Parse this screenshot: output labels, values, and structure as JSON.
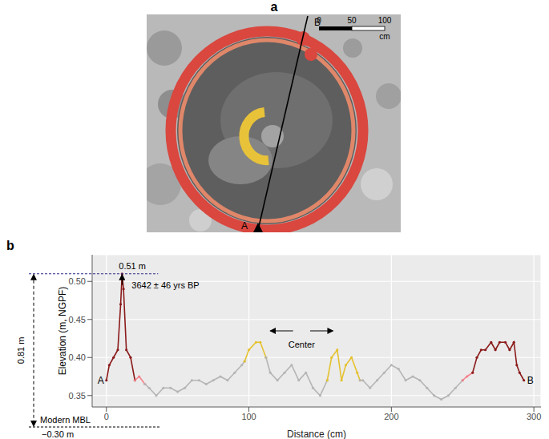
{
  "chart_data": {
    "type": "line",
    "panel_label": "b",
    "x_label": "Distance (cm)",
    "y_label": "Elevation (m, NGPF)",
    "xlim": [
      -10,
      305
    ],
    "xticks": [
      0,
      100,
      200,
      300
    ],
    "ylim": [
      0.335,
      0.535
    ],
    "yticks": [
      0.35,
      {
        "value": 0.4,
        "label": "0.40"
      },
      0.45,
      {
        "value": 0.5,
        "label": "0.50"
      }
    ],
    "grid": true,
    "marker": "circle",
    "series": [
      {
        "color": "#8b1a1a",
        "x": [
          0,
          2,
          5,
          8,
          10,
          11,
          12,
          14,
          17,
          20
        ],
        "values": [
          0.37,
          0.39,
          0.4,
          0.41,
          0.47,
          0.51,
          0.49,
          0.41,
          0.4,
          0.37
        ]
      },
      {
        "color": "#f4828c",
        "x": [
          20,
          23,
          27
        ],
        "values": [
          0.37,
          0.375,
          0.365
        ]
      },
      {
        "color": "#b5b5b5",
        "x": [
          27,
          30,
          35,
          40,
          45,
          50,
          55,
          60,
          65,
          70,
          75,
          80,
          85,
          90,
          95,
          97
        ],
        "values": [
          0.365,
          0.36,
          0.35,
          0.36,
          0.36,
          0.355,
          0.36,
          0.37,
          0.37,
          0.365,
          0.37,
          0.375,
          0.37,
          0.38,
          0.39,
          0.395
        ]
      },
      {
        "color": "#e5c12f",
        "x": [
          97,
          100,
          105,
          108,
          112
        ],
        "values": [
          0.395,
          0.41,
          0.42,
          0.42,
          0.4
        ]
      },
      {
        "color": "#b5b5b5",
        "x": [
          112,
          115,
          120,
          125,
          130,
          135,
          140,
          145,
          150,
          155
        ],
        "values": [
          0.4,
          0.38,
          0.37,
          0.38,
          0.39,
          0.37,
          0.38,
          0.36,
          0.35,
          0.37
        ]
      },
      {
        "color": "#e5c12f",
        "x": [
          155,
          158,
          162,
          165,
          168,
          172,
          176,
          178
        ],
        "values": [
          0.37,
          0.4,
          0.41,
          0.37,
          0.39,
          0.4,
          0.38,
          0.37
        ]
      },
      {
        "color": "#b5b5b5",
        "x": [
          178,
          180,
          185,
          190,
          195,
          200,
          205,
          210,
          215,
          220,
          225,
          230,
          235,
          240,
          245,
          250
        ],
        "values": [
          0.37,
          0.37,
          0.36,
          0.37,
          0.38,
          0.39,
          0.385,
          0.37,
          0.375,
          0.37,
          0.36,
          0.35,
          0.345,
          0.35,
          0.36,
          0.37
        ]
      },
      {
        "color": "#f4828c",
        "x": [
          250,
          253,
          257
        ],
        "values": [
          0.37,
          0.375,
          0.38
        ]
      },
      {
        "color": "#8b1a1a",
        "x": [
          257,
          260,
          263,
          266,
          270,
          273,
          276,
          280,
          283,
          286,
          288,
          290,
          293
        ],
        "values": [
          0.38,
          0.4,
          0.41,
          0.41,
          0.42,
          0.41,
          0.42,
          0.42,
          0.41,
          0.42,
          0.39,
          0.38,
          0.37
        ]
      }
    ],
    "peak": {
      "value": 0.51,
      "label": "0.51 m",
      "age": "3642 ± 46 yrs BP"
    },
    "height_above_mbl": {
      "value": 0.81,
      "label": "0.81 m"
    },
    "mbl": {
      "name": "Modern MBL",
      "value": -0.3,
      "label": "−0.30 m"
    },
    "center_label": "Center",
    "section_labels": [
      "A",
      "B"
    ]
  },
  "panel_a": {
    "panel_label": "a",
    "section_labels": [
      "A",
      "B"
    ],
    "scale_bar": {
      "ticks": [
        0,
        50,
        100
      ],
      "unit": "cm"
    }
  }
}
